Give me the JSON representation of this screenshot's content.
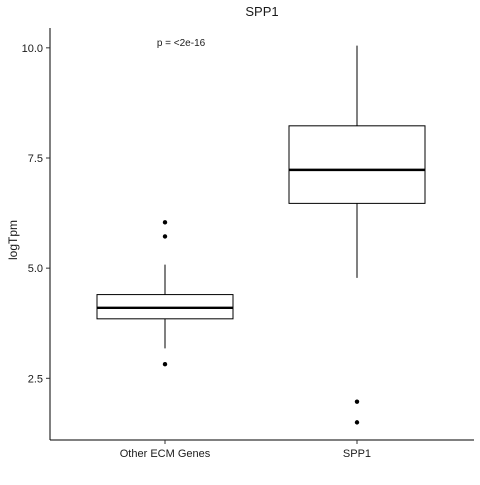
{
  "chart_data": {
    "type": "box",
    "title": "SPP1",
    "xlabel": "",
    "ylabel": "logTpm",
    "ylim": [
      1.1,
      10.45
    ],
    "yticks": [
      2.5,
      5.0,
      7.5,
      10.0
    ],
    "ytick_labels": [
      "2.5",
      "5.0",
      "7.5",
      "10.0"
    ],
    "categories": [
      "Other ECM Genes",
      "SPP1"
    ],
    "annotation": "p = <2e-16",
    "grid": false,
    "boxes": [
      {
        "category": "Other ECM Genes",
        "whisker_low": 3.18,
        "q1": 3.85,
        "median": 4.1,
        "q3": 4.4,
        "whisker_high": 5.08,
        "outliers": [
          2.82,
          5.72,
          6.04
        ]
      },
      {
        "category": "SPP1",
        "whisker_low": 4.78,
        "q1": 6.47,
        "median": 7.23,
        "q3": 8.23,
        "whisker_high": 10.05,
        "outliers": [
          1.5,
          1.97
        ]
      }
    ]
  }
}
